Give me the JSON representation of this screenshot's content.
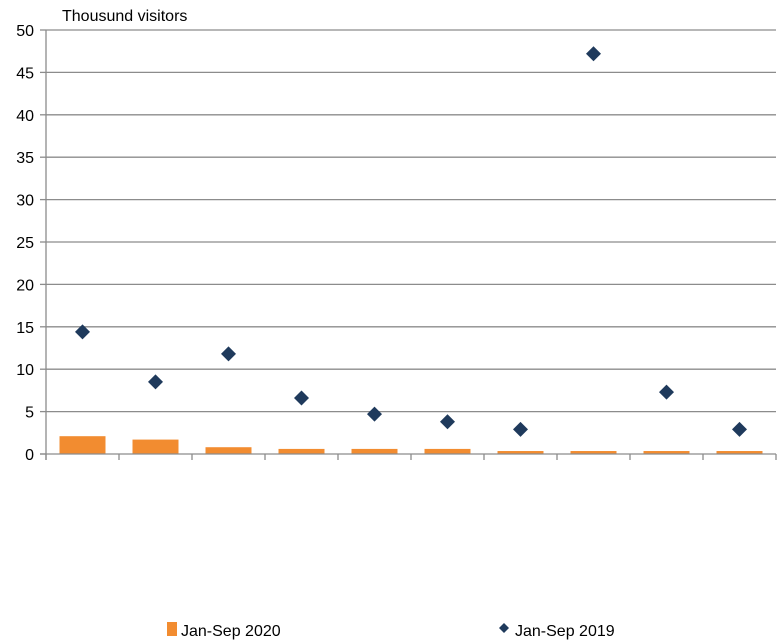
{
  "chart_data": {
    "type": "bar",
    "ylabel": "Thousund visitors",
    "ylim": [
      0,
      50
    ],
    "yticks": [
      0,
      5,
      10,
      15,
      20,
      25,
      30,
      35,
      40,
      45,
      50
    ],
    "categories": [
      "",
      "",
      "",
      "",
      "",
      "",
      "",
      "",
      "",
      ""
    ],
    "grid": true,
    "legend_placement": "bottom",
    "series": [
      {
        "name": "Jan-Sep 2020",
        "type": "bar",
        "marker": "square",
        "color": "#F28C30",
        "values": [
          2.1,
          1.7,
          0.8,
          0.6,
          0.6,
          0.6,
          0.35,
          0.35,
          0.35,
          0.35
        ]
      },
      {
        "name": "Jan-Sep 2019",
        "type": "scatter",
        "marker": "diamond",
        "color": "#1F3A5C",
        "values": [
          14.4,
          8.5,
          11.8,
          6.6,
          4.7,
          3.8,
          2.9,
          47.2,
          7.3,
          2.9
        ]
      }
    ]
  }
}
